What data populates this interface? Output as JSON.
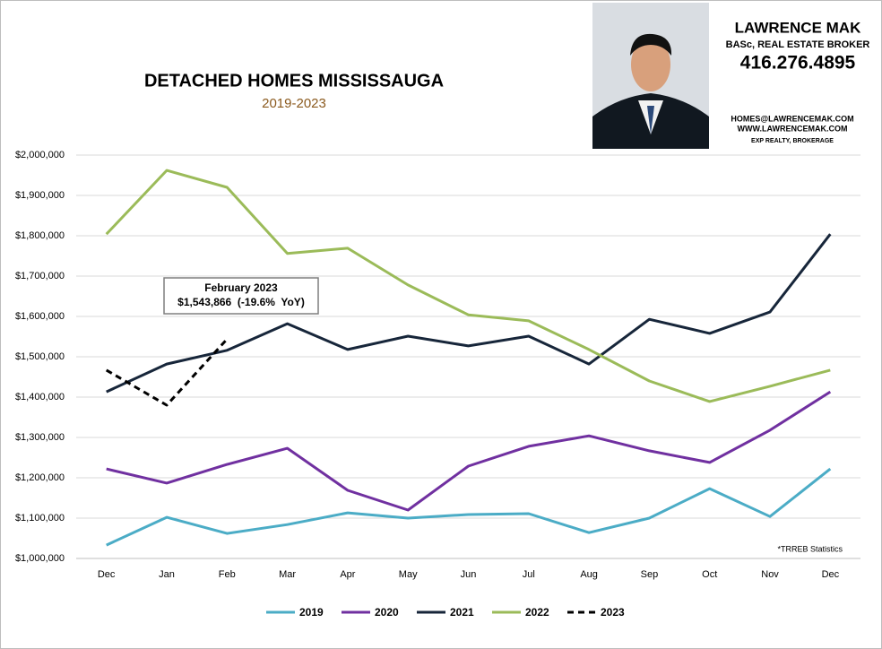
{
  "header": {
    "name": "LAWRENCE MAK",
    "credentials": "BASc, REAL ESTATE BROKER",
    "phone": "416.276.4895",
    "email": "HOMES@LAWRENCEMAK.COM",
    "website": "WWW.LAWRENCEMAK.COM",
    "brokerage": "EXP REALTY, BROKERAGE"
  },
  "chart_data": {
    "type": "line",
    "title": "DETACHED HOMES MISSISSAUGA",
    "subtitle": "2019-2023",
    "categories": [
      "Dec",
      "Jan",
      "Feb",
      "Mar",
      "Apr",
      "May",
      "Jun",
      "Jul",
      "Aug",
      "Sep",
      "Oct",
      "Nov",
      "Dec"
    ],
    "series": [
      {
        "name": "2019",
        "color": "#4bacc6",
        "values": [
          1033000,
          1102000,
          1062000,
          1084000,
          1113000,
          1100000,
          1109000,
          1111000,
          1064000,
          1100000,
          1173000,
          1104000,
          1222000
        ]
      },
      {
        "name": "2020",
        "color": "#7030a0",
        "values": [
          1222000,
          1187000,
          1233000,
          1273000,
          1169000,
          1120000,
          1229000,
          1278000,
          1304000,
          1267000,
          1238000,
          1318000,
          1413000
        ]
      },
      {
        "name": "2021",
        "color": "#17263a",
        "values": [
          1413000,
          1482000,
          1516000,
          1582000,
          1518000,
          1551000,
          1527000,
          1551000,
          1482000,
          1593000,
          1558000,
          1611000,
          1804000
        ]
      },
      {
        "name": "2022",
        "color": "#9bbb59",
        "values": [
          1804000,
          1962000,
          1920000,
          1756000,
          1769000,
          1678000,
          1604000,
          1589000,
          1518000,
          1440000,
          1389000,
          1427000,
          1467000
        ]
      },
      {
        "name": "2023",
        "color": "#000000",
        "line_style": "dashed",
        "values": [
          1467000,
          1380000,
          1543866,
          null,
          null,
          null,
          null,
          null,
          null,
          null,
          null,
          null,
          null
        ]
      }
    ],
    "ylim": [
      1000000,
      2000000
    ],
    "yticks": [
      {
        "value": 1000000,
        "label": "$1,000,000"
      },
      {
        "value": 1100000,
        "label": "$1,100,000"
      },
      {
        "value": 1200000,
        "label": "$1,200,000"
      },
      {
        "value": 1300000,
        "label": "$1,300,000"
      },
      {
        "value": 1400000,
        "label": "$1,400,000"
      },
      {
        "value": 1500000,
        "label": "$1,500,000"
      },
      {
        "value": 1600000,
        "label": "$1,600,000"
      },
      {
        "value": 1700000,
        "label": "$1,700,000"
      },
      {
        "value": 1800000,
        "label": "$1,800,000"
      },
      {
        "value": 1900000,
        "label": "$1,900,000"
      },
      {
        "value": 2000000,
        "label": "$2,000,000"
      }
    ],
    "grid": true,
    "legend": "bottom",
    "annotation": {
      "title": "February 2023",
      "text": "$1,543,866  (-19.6%  YoY)"
    },
    "source": "*TRREB Statistics"
  }
}
